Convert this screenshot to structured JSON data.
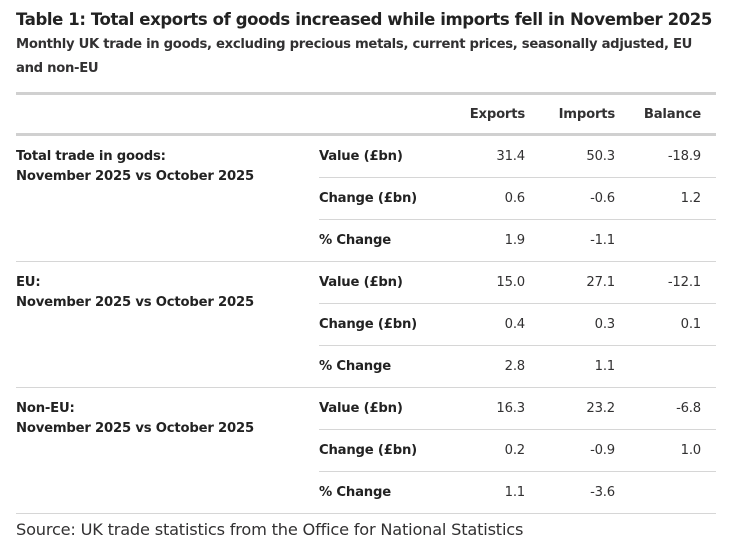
{
  "title": "Table 1: Total exports of goods increased while imports fell in November 2025",
  "subtitle": "Monthly UK trade in goods, excluding precious metals, current prices, seasonally adjusted, EU and non-EU",
  "table": {
    "columns": [
      "",
      "",
      "Exports",
      "Imports",
      "Balance"
    ],
    "groups": [
      {
        "label_line1": "Total trade in goods:",
        "label_line2": "November 2025 vs October 2025",
        "rows": [
          {
            "measure": "Value (£bn)",
            "exports": "31.4",
            "imports": "50.3",
            "balance": "-18.9"
          },
          {
            "measure": "Change (£bn)",
            "exports": "0.6",
            "imports": "-0.6",
            "balance": "1.2"
          },
          {
            "measure": "% Change",
            "exports": "1.9",
            "imports": "-1.1",
            "balance": ""
          }
        ]
      },
      {
        "label_line1": "EU:",
        "label_line2": "November 2025 vs October 2025",
        "rows": [
          {
            "measure": "Value (£bn)",
            "exports": "15.0",
            "imports": "27.1",
            "balance": "-12.1"
          },
          {
            "measure": "Change (£bn)",
            "exports": "0.4",
            "imports": "0.3",
            "balance": "0.1"
          },
          {
            "measure": "% Change",
            "exports": "2.8",
            "imports": "1.1",
            "balance": ""
          }
        ]
      },
      {
        "label_line1": "Non-EU:",
        "label_line2": "November 2025 vs October 2025",
        "rows": [
          {
            "measure": "Value (£bn)",
            "exports": "16.3",
            "imports": "23.2",
            "balance": "-6.8"
          },
          {
            "measure": "Change (£bn)",
            "exports": "0.2",
            "imports": "-0.9",
            "balance": "1.0"
          },
          {
            "measure": "% Change",
            "exports": "1.1",
            "imports": "-3.6",
            "balance": ""
          }
        ]
      }
    ]
  },
  "source": "Source: UK trade statistics from the Office for National Statistics",
  "colors": {
    "text": "#323132",
    "heading": "#222222",
    "rule_heavy": "#d0d0d0",
    "rule_light": "#d6d6d6",
    "background": "#ffffff"
  }
}
